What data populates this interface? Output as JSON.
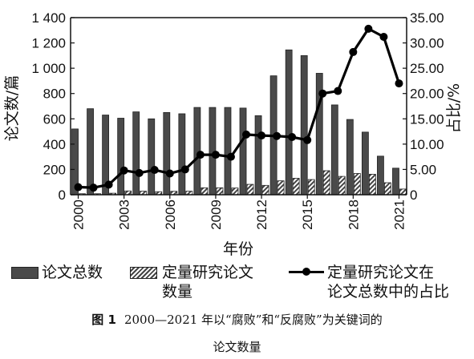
{
  "chart_data": {
    "type": "bar",
    "xlabel": "年份",
    "ylabel_left": "论文数/篇",
    "ylabel_right": "占比/%",
    "ylim_left": [
      0,
      1400
    ],
    "ylim_right": [
      0,
      35
    ],
    "yticks_left": [
      "0",
      "200",
      "400",
      "600",
      "800",
      "1 000",
      "1 200",
      "1 400"
    ],
    "yticks_right": [
      "0",
      "5.00",
      "10.00",
      "15.00",
      "20.00",
      "25.00",
      "30.00",
      "35.00"
    ],
    "x": [
      2000,
      2001,
      2002,
      2003,
      2004,
      2005,
      2006,
      2007,
      2008,
      2009,
      2010,
      2011,
      2012,
      2013,
      2014,
      2015,
      2016,
      2017,
      2018,
      2019,
      2020,
      2021
    ],
    "xtick_labels": [
      "2000",
      "2003",
      "2006",
      "2009",
      "2012",
      "2015",
      "2018",
      "2021"
    ],
    "grid": false,
    "series": [
      {
        "name": "论文总数",
        "axis": "left",
        "type": "bar",
        "values": [
          520,
          680,
          630,
          605,
          655,
          600,
          650,
          640,
          690,
          690,
          690,
          685,
          625,
          940,
          1145,
          1100,
          960,
          710,
          595,
          495,
          305,
          210
        ]
      },
      {
        "name": "定量研究论文数量",
        "axis": "left",
        "type": "bar",
        "values": [
          8,
          8,
          12,
          30,
          28,
          24,
          27,
          28,
          55,
          55,
          53,
          82,
          74,
          110,
          130,
          120,
          190,
          145,
          168,
          162,
          95,
          45
        ]
      },
      {
        "name": "定量研究论文在论文总数中的占比",
        "axis": "right",
        "type": "line",
        "values": [
          1.5,
          1.4,
          2.0,
          4.8,
          4.3,
          4.9,
          4.2,
          5.0,
          7.9,
          7.9,
          7.5,
          11.9,
          11.7,
          11.6,
          11.4,
          10.8,
          20.0,
          20.5,
          28.2,
          32.8,
          31.2,
          22.0
        ]
      }
    ]
  },
  "legend": {
    "bar_line1": "论文总数",
    "hatch_line1": "定量研究论文",
    "hatch_line2": "数量",
    "line_line1": "定量研究论文在",
    "line_line2": "论文总数中的占比"
  },
  "caption": {
    "label": "图 1",
    "line1": "2000—2021 年以“腐败”和“反腐败”为关键词的",
    "line2": "论文数量"
  }
}
